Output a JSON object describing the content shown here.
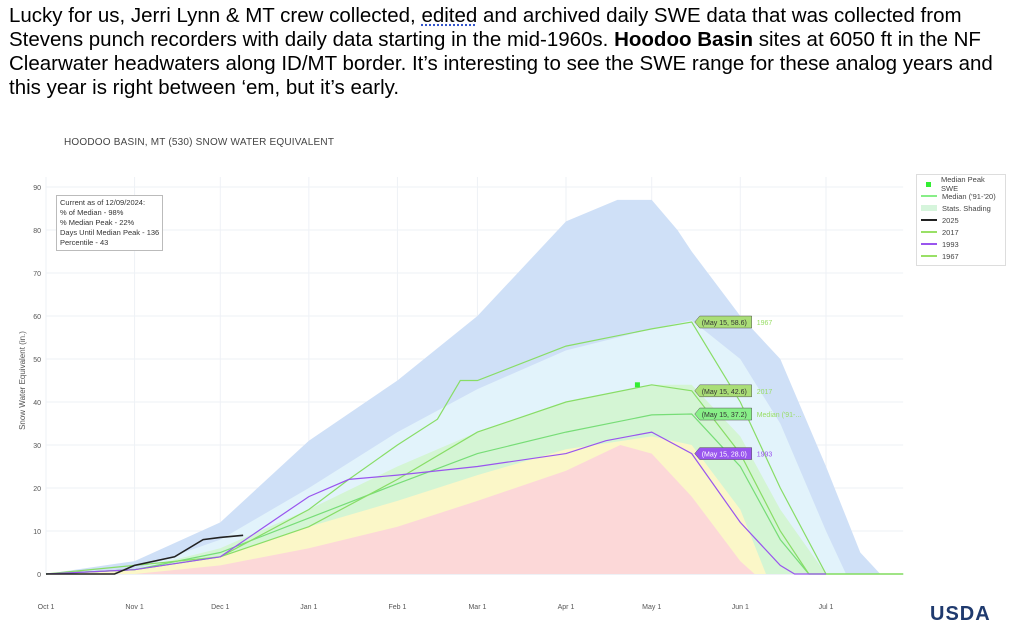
{
  "caption": {
    "part1": "Lucky for us, Jerri Lynn & MT crew collected, ",
    "underlined": "edited",
    "part2": " and archived daily SWE data that was collected from Stevens punch recorders with daily data starting in the mid-1960s. ",
    "bold": "Hoodoo Basin",
    "part3": " sites at 6050 ft in the NF Clearwater headwaters along ID/MT border. It’s interesting to see the SWE range for these analog years and this year is right between ‘em, but it’s early."
  },
  "info_box": [
    "Current as of 12/09/2024:",
    "% of Median - 98%",
    "% Median Peak - 22%",
    "Days Until Median Peak - 136",
    "Percentile - 43"
  ],
  "logo_text": "USDA",
  "chart_data": {
    "type": "area",
    "title": "HOODOO BASIN, MT (530) SNOW WATER EQUIVALENT",
    "ylabel": "Snow Water Equivalent (in.)",
    "xlabel": "",
    "x_units": "days since Oct 1",
    "xlim": [
      0,
      300
    ],
    "ylim": [
      0,
      90
    ],
    "yticks": [
      0,
      10,
      20,
      30,
      40,
      50,
      60,
      70,
      80,
      90
    ],
    "xticks": [
      {
        "day": 0,
        "label": "Oct 1"
      },
      {
        "day": 31,
        "label": "Nov 1"
      },
      {
        "day": 61,
        "label": "Dec 1"
      },
      {
        "day": 92,
        "label": "Jan 1"
      },
      {
        "day": 123,
        "label": "Feb 1"
      },
      {
        "day": 151,
        "label": "Mar 1"
      },
      {
        "day": 182,
        "label": "Apr 1"
      },
      {
        "day": 212,
        "label": "May 1"
      },
      {
        "day": 243,
        "label": "Jun 1"
      },
      {
        "day": 273,
        "label": "Jul 1"
      }
    ],
    "grid": true,
    "legend_position": "top-right",
    "legend": [
      {
        "label": "Median Peak SWE",
        "color": "#33ee33",
        "kind": "marker"
      },
      {
        "label": "Median ('91-'20)",
        "color": "#88ee88",
        "kind": "line"
      },
      {
        "label": "Stats. Shading",
        "color": "#d6f5dc",
        "kind": "band"
      },
      {
        "label": "2025",
        "color": "#222222",
        "kind": "line"
      },
      {
        "label": "2017",
        "color": "#99e066",
        "kind": "line"
      },
      {
        "label": "1993",
        "color": "#9955ee",
        "kind": "line"
      },
      {
        "label": "1967",
        "color": "#99e066",
        "kind": "line"
      }
    ],
    "bands": [
      {
        "name": "max",
        "color": "#cfe0f7",
        "x": [
          0,
          31,
          61,
          92,
          123,
          151,
          182,
          200,
          212,
          221,
          226,
          243,
          257,
          273,
          285,
          292
        ],
        "y": [
          0,
          3,
          12,
          31,
          45,
          60,
          82,
          87,
          87,
          80,
          75,
          60,
          50,
          25,
          5,
          0
        ]
      },
      {
        "name": "90th",
        "color": "#e2f3fb",
        "x": [
          0,
          31,
          61,
          92,
          123,
          151,
          182,
          212,
          226,
          243,
          257,
          273,
          280
        ],
        "y": [
          0,
          1,
          8,
          20,
          33,
          43,
          52,
          57,
          59,
          50,
          35,
          10,
          0
        ]
      },
      {
        "name": "70th",
        "color": "#d4f5d4",
        "x": [
          0,
          31,
          61,
          92,
          123,
          151,
          182,
          212,
          226,
          243,
          257,
          273
        ],
        "y": [
          0,
          1,
          6,
          15,
          25,
          33,
          40,
          44,
          44,
          32,
          15,
          0
        ]
      },
      {
        "name": "30th",
        "color": "#fbf7c8",
        "x": [
          0,
          31,
          61,
          92,
          123,
          151,
          182,
          212,
          226,
          243,
          252
        ],
        "y": [
          0,
          1,
          4,
          11,
          17,
          23,
          29,
          32,
          30,
          15,
          0
        ]
      },
      {
        "name": "10th",
        "color": "#fcd8d8",
        "x": [
          0,
          31,
          61,
          92,
          123,
          151,
          182,
          201,
          212,
          226,
          243,
          248
        ],
        "y": [
          0,
          0,
          2,
          6,
          11,
          17,
          24,
          30,
          28,
          18,
          3,
          0
        ]
      }
    ],
    "series": [
      {
        "name": "Median ('91-'20)",
        "color": "#77dd77",
        "x": [
          0,
          31,
          61,
          92,
          123,
          151,
          182,
          212,
          226,
          243,
          257,
          267,
          300
        ],
        "y": [
          0,
          1,
          5,
          13,
          21,
          28,
          33,
          37,
          37.2,
          25,
          8,
          0,
          0
        ]
      },
      {
        "name": "1967",
        "color": "#88dd66",
        "x": [
          0,
          31,
          61,
          92,
          106,
          123,
          137,
          145,
          151,
          182,
          212,
          226,
          243,
          257,
          273,
          300
        ],
        "y": [
          0,
          1,
          4,
          15,
          22,
          30,
          36,
          45,
          45,
          53,
          57,
          58.6,
          40,
          20,
          0,
          0
        ]
      },
      {
        "name": "2017",
        "color": "#88dd66",
        "x": [
          0,
          31,
          61,
          92,
          123,
          151,
          182,
          212,
          226,
          243,
          257,
          267,
          300
        ],
        "y": [
          0,
          2,
          4,
          11,
          22,
          33,
          40,
          44,
          42.6,
          28,
          10,
          0,
          0
        ]
      },
      {
        "name": "1993",
        "color": "#9955ee",
        "x": [
          0,
          31,
          61,
          92,
          106,
          123,
          151,
          182,
          196,
          212,
          226,
          243,
          257,
          262,
          273
        ],
        "y": [
          0,
          1,
          4,
          18,
          22,
          23,
          25,
          28,
          31,
          33,
          28,
          12,
          2,
          0,
          0
        ]
      },
      {
        "name": "2025",
        "color": "#222222",
        "x": [
          0,
          24,
          31,
          45,
          55,
          61,
          69
        ],
        "y": [
          0,
          0,
          2,
          4,
          8,
          8.5,
          9
        ]
      }
    ],
    "median_peak": {
      "day": 207,
      "value": 44
    },
    "annotations": [
      {
        "label": "(May 15, 58.6)",
        "tag": "1967",
        "day": 226,
        "value": 58.6,
        "bg": "#aade77"
      },
      {
        "label": "(May 15, 42.6)",
        "tag": "2017",
        "day": 226,
        "value": 42.6,
        "bg": "#aade77"
      },
      {
        "label": "(May 15, 37.2)",
        "tag": "Median ('91-...",
        "day": 226,
        "value": 37.2,
        "bg": "#88ee88"
      },
      {
        "label": "(May 15, 28.0)",
        "tag": "1993",
        "day": 226,
        "value": 28.0,
        "bg": "#9955ee"
      }
    ]
  }
}
